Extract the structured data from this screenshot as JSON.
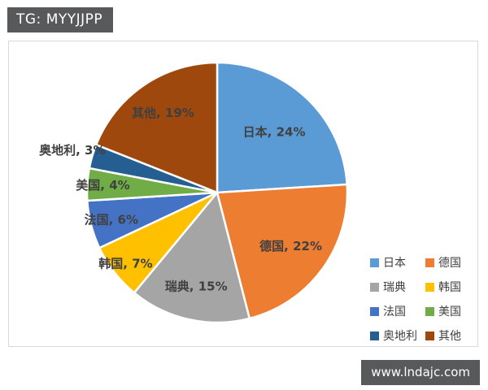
{
  "header": {
    "tag_label": "TG: MYYJJPP"
  },
  "watermark": {
    "text": "www.lndajc.com"
  },
  "chart_data": {
    "type": "pie",
    "title": "",
    "start_angle_deg": 0,
    "direction": "clockwise",
    "slice_border_color": "#FFFFFF",
    "label_color": "#404040",
    "slices": [
      {
        "label": "日本",
        "value_pct": 24,
        "color": "#5B9BD5",
        "label_radius_factor": 0.64
      },
      {
        "label": "德国",
        "value_pct": 22,
        "color": "#ED7D31",
        "label_radius_factor": 0.7
      },
      {
        "label": "瑞典",
        "value_pct": 15,
        "color": "#A5A5A5",
        "label_radius_factor": 0.74
      },
      {
        "label": "韩国",
        "value_pct": 7,
        "color": "#FFC000",
        "label_radius_factor": 0.89
      },
      {
        "label": "法国",
        "value_pct": 6,
        "color": "#4472C4",
        "label_radius_factor": 0.84
      },
      {
        "label": "美国",
        "value_pct": 4,
        "color": "#70AD47",
        "label_radius_factor": 0.88
      },
      {
        "label": "奥地利",
        "value_pct": 3,
        "color": "#255E91",
        "label_radius_factor": 1.16
      },
      {
        "label": "其他",
        "value_pct": 19,
        "color": "#9E480E",
        "label_radius_factor": 0.74
      }
    ],
    "legend": {
      "position": "bottom-right",
      "columns": 2,
      "order": [
        "日本",
        "德国",
        "瑞典",
        "韩国",
        "法国",
        "美国",
        "奥地利",
        "其他"
      ]
    }
  }
}
